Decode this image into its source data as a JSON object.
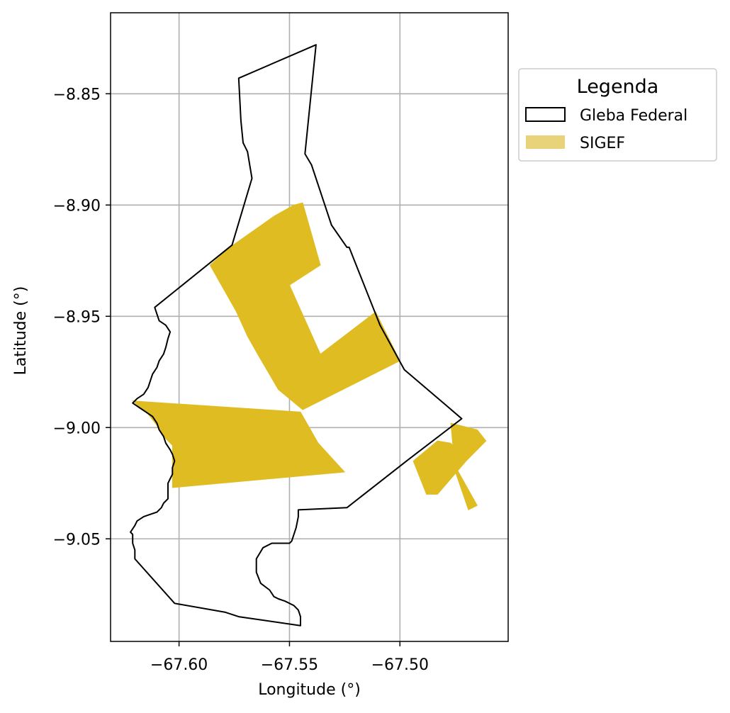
{
  "map": {
    "xlabel": "Longitude (°)",
    "ylabel": "Latitude (°)",
    "xlim": [
      -67.631,
      -67.451
    ],
    "ylim": [
      -9.0961,
      -8.8136
    ],
    "x_ticks": [
      -67.6,
      -67.55,
      -67.5
    ],
    "x_tick_labels": [
      "−67.60",
      "−67.55",
      "−67.50"
    ],
    "y_ticks": [
      -8.85,
      -8.9,
      -8.95,
      -9.0,
      -9.05
    ],
    "y_tick_labels": [
      "−8.85",
      "−8.90",
      "−8.95",
      "−9.00",
      "−9.05"
    ],
    "grid": true,
    "legend_placement": "outside-top-right"
  },
  "legend": {
    "title": "Legenda",
    "items": [
      {
        "label": "Gleba Federal",
        "style": "outline",
        "color": "#000000"
      },
      {
        "label": "SIGEF",
        "style": "fill",
        "color": "#e9d37a"
      }
    ]
  },
  "colors": {
    "sigef_fill": "#dfbd22",
    "gleba_stroke": "#000000",
    "grid": "#b0b0b0"
  },
  "chart_data": {
    "type": "map",
    "xlabel": "Longitude (°)",
    "ylabel": "Latitude (°)",
    "xlim": [
      -67.631,
      -67.451
    ],
    "ylim": [
      -9.0961,
      -8.8136
    ],
    "layers": [
      {
        "name": "Gleba Federal",
        "kind": "outline",
        "polygons": [
          [
            [
              -67.538,
              -8.828
            ],
            [
              -67.543,
              -8.877
            ],
            [
              -67.54,
              -8.882
            ],
            [
              -67.531,
              -8.909
            ],
            [
              -67.524,
              -8.919
            ],
            [
              -67.523,
              -8.919
            ],
            [
              -67.509,
              -8.954
            ],
            [
              -67.498,
              -8.974
            ],
            [
              -67.472,
              -8.996
            ],
            [
              -67.497,
              -9.015
            ],
            [
              -67.524,
              -9.036
            ],
            [
              -67.546,
              -9.037
            ],
            [
              -67.546,
              -9.04
            ],
            [
              -67.547,
              -9.045
            ],
            [
              -67.549,
              -9.051
            ],
            [
              -67.55,
              -9.052
            ],
            [
              -67.558,
              -9.052
            ],
            [
              -67.562,
              -9.054
            ],
            [
              -67.565,
              -9.059
            ],
            [
              -67.565,
              -9.065
            ],
            [
              -67.563,
              -9.07
            ],
            [
              -67.559,
              -9.073
            ],
            [
              -67.557,
              -9.076
            ],
            [
              -67.555,
              -9.077
            ],
            [
              -67.552,
              -9.078
            ],
            [
              -67.548,
              -9.08
            ],
            [
              -67.546,
              -9.082
            ],
            [
              -67.545,
              -9.085
            ],
            [
              -67.545,
              -9.089
            ],
            [
              -67.573,
              -9.085
            ],
            [
              -67.579,
              -9.083
            ],
            [
              -67.602,
              -9.079
            ],
            [
              -67.62,
              -9.059
            ],
            [
              -67.62,
              -9.055
            ],
            [
              -67.621,
              -9.052
            ],
            [
              -67.621,
              -9.048
            ],
            [
              -67.622,
              -9.047
            ],
            [
              -67.62,
              -9.044
            ],
            [
              -67.619,
              -9.042
            ],
            [
              -67.616,
              -9.04
            ],
            [
              -67.613,
              -9.039
            ],
            [
              -67.61,
              -9.038
            ],
            [
              -67.608,
              -9.036
            ],
            [
              -67.607,
              -9.034
            ],
            [
              -67.605,
              -9.032
            ],
            [
              -67.605,
              -9.028
            ],
            [
              -67.605,
              -9.025
            ],
            [
              -67.604,
              -9.023
            ],
            [
              -67.603,
              -9.021
            ],
            [
              -67.603,
              -9.018
            ],
            [
              -67.602,
              -9.015
            ],
            [
              -67.603,
              -9.012
            ],
            [
              -67.604,
              -9.01
            ],
            [
              -67.606,
              -9.007
            ],
            [
              -67.607,
              -9.004
            ],
            [
              -67.609,
              -9.001
            ],
            [
              -67.61,
              -8.998
            ],
            [
              -67.612,
              -8.995
            ],
            [
              -67.615,
              -8.993
            ],
            [
              -67.618,
              -8.991
            ],
            [
              -67.621,
              -8.989
            ],
            [
              -67.619,
              -8.987
            ],
            [
              -67.616,
              -8.985
            ],
            [
              -67.614,
              -8.982
            ],
            [
              -67.613,
              -8.979
            ],
            [
              -67.612,
              -8.976
            ],
            [
              -67.61,
              -8.973
            ],
            [
              -67.609,
              -8.97
            ],
            [
              -67.607,
              -8.967
            ],
            [
              -67.606,
              -8.964
            ],
            [
              -67.605,
              -8.96
            ],
            [
              -67.604,
              -8.957
            ],
            [
              -67.606,
              -8.954
            ],
            [
              -67.609,
              -8.952
            ],
            [
              -67.61,
              -8.949
            ],
            [
              -67.611,
              -8.946
            ],
            [
              -67.576,
              -8.918
            ],
            [
              -67.567,
              -8.888
            ],
            [
              -67.569,
              -8.876
            ],
            [
              -67.571,
              -8.872
            ],
            [
              -67.572,
              -8.862
            ],
            [
              -67.573,
              -8.843
            ],
            [
              -67.538,
              -8.828
            ]
          ]
        ]
      },
      {
        "name": "SIGEF",
        "kind": "filled",
        "polygons": [
          [
            [
              -67.586,
              -8.927
            ],
            [
              -67.577,
              -8.919
            ],
            [
              -67.557,
              -8.905
            ],
            [
              -67.548,
              -8.9
            ],
            [
              -67.544,
              -8.899
            ],
            [
              -67.536,
              -8.927
            ],
            [
              -67.55,
              -8.936
            ],
            [
              -67.574,
              -8.948
            ]
          ],
          [
            [
              -67.574,
              -8.948
            ],
            [
              -67.55,
              -8.936
            ],
            [
              -67.536,
              -8.967
            ],
            [
              -67.55,
              -8.98
            ],
            [
              -67.555,
              -8.983
            ],
            [
              -67.565,
              -8.966
            ],
            [
              -67.569,
              -8.959
            ]
          ],
          [
            [
              -67.565,
              -8.966
            ],
            [
              -67.555,
              -8.983
            ],
            [
              -67.544,
              -8.992
            ],
            [
              -67.532,
              -8.986
            ],
            [
              -67.5,
              -8.97
            ],
            [
              -67.511,
              -8.948
            ],
            [
              -67.536,
              -8.967
            ],
            [
              -67.55,
              -8.98
            ]
          ],
          [
            [
              -67.621,
              -8.988
            ],
            [
              -67.545,
              -8.993
            ],
            [
              -67.537,
              -9.007
            ],
            [
              -67.603,
              -9.008
            ],
            [
              -67.606,
              -9.005
            ],
            [
              -67.61,
              -8.999
            ],
            [
              -67.614,
              -8.994
            ]
          ],
          [
            [
              -67.603,
              -9.008
            ],
            [
              -67.537,
              -9.007
            ],
            [
              -67.525,
              -9.02
            ],
            [
              -67.603,
              -9.027
            ],
            [
              -67.603,
              -9.02
            ]
          ],
          [
            [
              -67.494,
              -9.015
            ],
            [
              -67.483,
              -9.006
            ],
            [
              -67.477,
              -9.007
            ],
            [
              -67.47,
              -9.015
            ],
            [
              -67.483,
              -9.03
            ],
            [
              -67.488,
              -9.03
            ]
          ],
          [
            [
              -67.477,
              -8.998
            ],
            [
              -67.465,
              -9.001
            ],
            [
              -67.461,
              -9.006
            ],
            [
              -67.47,
              -9.015
            ],
            [
              -67.476,
              -9.009
            ]
          ],
          [
            [
              -67.483,
              -9.006
            ],
            [
              -67.478,
              -9.011
            ],
            [
              -67.469,
              -9.037
            ],
            [
              -67.465,
              -9.035
            ],
            [
              -67.474,
              -9.019
            ]
          ]
        ]
      }
    ]
  }
}
